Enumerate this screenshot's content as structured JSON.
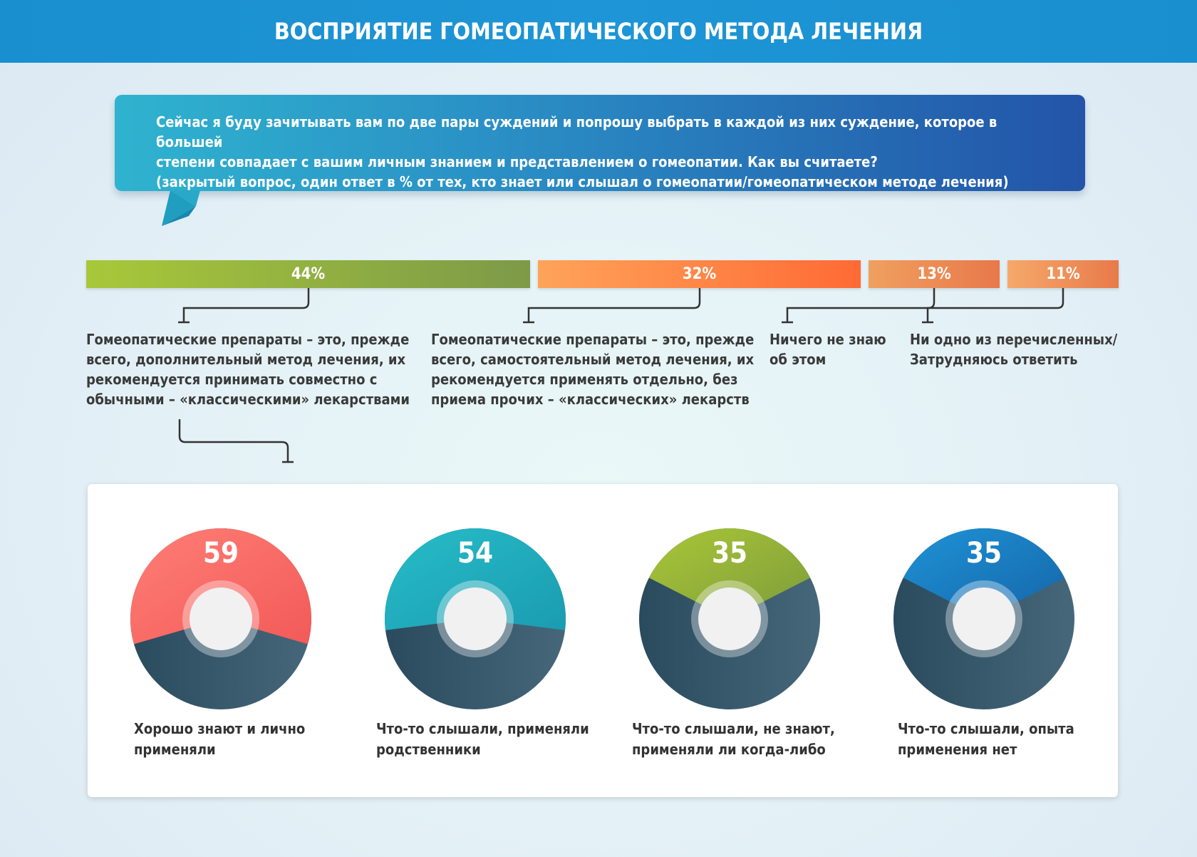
{
  "header": {
    "title": "ВОСПРИЯТИЕ ГОМЕОПАТИЧЕСКОГО МЕТОДА ЛЕЧЕНИЯ"
  },
  "question": {
    "line1": "Сейчас я буду зачитывать вам по две пары суждений и попрошу выбрать в каждой из них суждение, которое в большей",
    "line2": "степени совпадает с вашим личным знанием и представлением о гомеопатии. Как вы считаете?",
    "line3": "(закрытый вопрос, один ответ в % от тех, кто знает или слышал о гомеопатии/гомеопатическом методе лечения)"
  },
  "chart_data": [
    {
      "type": "bar",
      "categories": [
        "Гомеопатические препараты – это, прежде всего, дополнительный метод лечения, их рекомендуется принимать совместно с обычными – «классическими» лекарствами",
        "Гомеопатические препараты – это, прежде всего, самостоятельный метод лечения, их рекомендуется применять отдельно, без приема прочих – «классических» лекарств",
        "Ничего не знаю об этом",
        "Ни одно из перечисленных/ Затрудняюсь ответить"
      ],
      "values": [
        44,
        32,
        13,
        11
      ],
      "value_labels": [
        "44%",
        "32%",
        "13%",
        "11%"
      ],
      "colors": [
        [
          "#a8c83a",
          "#7d9a48"
        ],
        [
          "#ffa35a",
          "#ff6a35"
        ],
        [
          "#f0a060",
          "#e8784a"
        ],
        [
          "#f6a86a",
          "#e87a4a"
        ]
      ],
      "option_lines": [
        [
          "Гомеопатические препараты – это, прежде",
          "всего, дополнительный метод лечения, их",
          "рекомендуется принимать совместно с",
          "обычными – «классическими» лекарствами"
        ],
        [
          "Гомеопатические препараты – это, прежде",
          "всего, самостоятельный метод лечения, их",
          "рекомендуется применять отдельно, без",
          "приема прочих – «классических» лекарств"
        ],
        [
          "Ничего не знаю",
          "об этом"
        ],
        [
          "Ни одно из перечисленных/",
          "Затрудняюсь ответить"
        ]
      ]
    },
    {
      "type": "pie",
      "values": [
        59,
        54,
        35,
        35
      ],
      "value_labels": [
        "59",
        "54",
        "35",
        "35"
      ],
      "label_lines": [
        [
          "Хорошо знают и лично",
          "применяли"
        ],
        [
          "Что-то слышали, применяли",
          "родственники"
        ],
        [
          "Что-то слышали, не знают,",
          "применяли ли когда-либо"
        ],
        [
          "Что-то слышали, опыта",
          "применения нет"
        ]
      ],
      "colors": [
        [
          "#ff7e76",
          "#f25a58"
        ],
        [
          "#27bcc8",
          "#1a9cb0"
        ],
        [
          "#aac638",
          "#7d9c3a"
        ],
        [
          "#1e93d6",
          "#1565a8"
        ]
      ],
      "remainder_color": "#3a5a6c"
    }
  ]
}
